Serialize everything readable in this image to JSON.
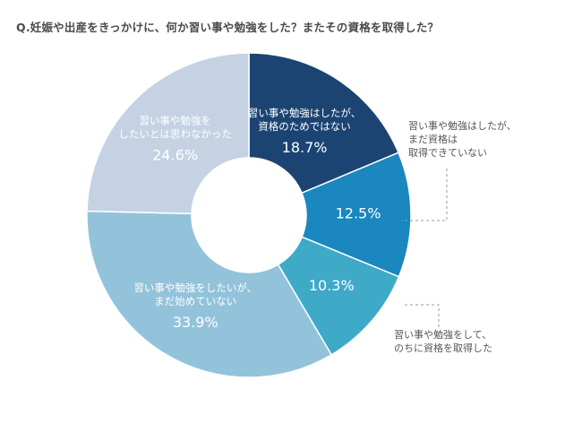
{
  "title": "Q.妊娠や出産をきっかけに、何か習い事や勉強をした？またその資格を取得した？",
  "chart_data": {
    "type": "pie",
    "donut": true,
    "slices": [
      {
        "label_lines": [
          "習い事や勉強はしたが、",
          "資格のためではない"
        ],
        "value": 18.7,
        "value_label": "18.7%",
        "color": "#1b4472",
        "label_inside": true
      },
      {
        "label_lines": [
          "習い事や勉強はしたが、",
          "まだ資格は",
          "取得できていない"
        ],
        "value": 12.5,
        "value_label": "12.5%",
        "color": "#1a87bf",
        "label_inside": false
      },
      {
        "label_lines": [
          "習い事や勉強をして、",
          "のちに資格を取得した"
        ],
        "value": 10.3,
        "value_label": "10.3%",
        "color": "#3eaac8",
        "label_inside": false
      },
      {
        "label_lines": [
          "習い事や勉強をしたいが、",
          "まだ始めていない"
        ],
        "value": 33.9,
        "value_label": "33.9%",
        "color": "#93c3da",
        "label_inside": true
      },
      {
        "label_lines": [
          "習い事や勉強を",
          "したいとは思わなかった"
        ],
        "value": 24.6,
        "value_label": "24.6%",
        "color": "#c4d2e4",
        "label_inside": true
      }
    ]
  }
}
